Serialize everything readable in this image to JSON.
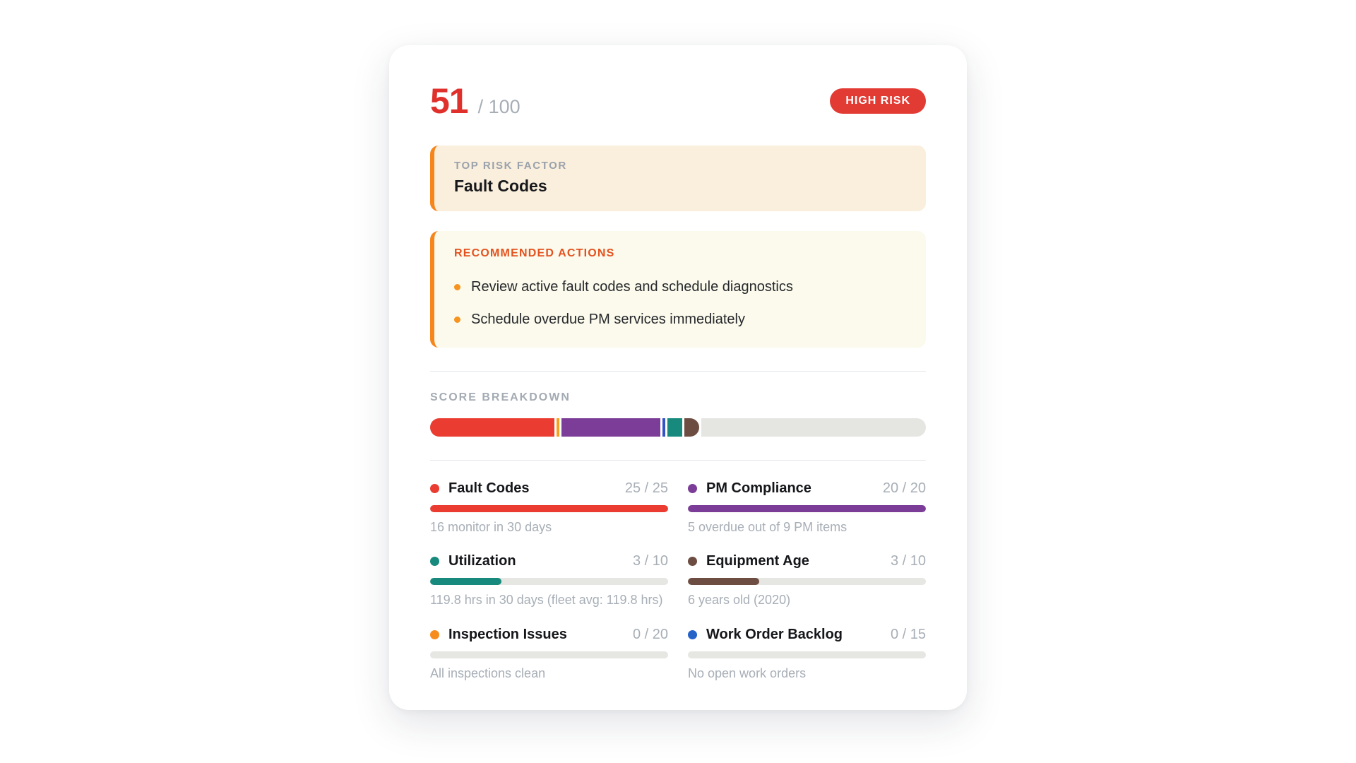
{
  "header": {
    "score": "51",
    "score_max": "/ 100",
    "badge": "HIGH RISK"
  },
  "top_risk": {
    "label": "TOP RISK FACTOR",
    "value": "Fault Codes"
  },
  "recommended": {
    "title": "RECOMMENDED ACTIONS",
    "items": [
      "Review active fault codes and schedule diagnostics",
      "Schedule overdue PM services immediately"
    ]
  },
  "breakdown": {
    "label": "SCORE BREAKDOWN",
    "total": 100,
    "track_color": "#e5e5e2",
    "segments": [
      {
        "name": "Fault Codes",
        "value": 25,
        "color": "#ea3c30"
      },
      {
        "name": "Inspection Issues",
        "value": 0,
        "color": "#f6a01f"
      },
      {
        "name": "PM Compliance",
        "value": 20,
        "color": "#7b3d97"
      },
      {
        "name": "Work Order Backlog",
        "value": 0,
        "color": "#3352c6"
      },
      {
        "name": "Utilization",
        "value": 3,
        "color": "#178a7d"
      },
      {
        "name": "Equipment Age",
        "value": 3,
        "color": "#6d4c41"
      }
    ]
  },
  "metrics": [
    {
      "name": "Fault Codes",
      "score": "25 / 25",
      "value": 25,
      "max": 25,
      "color": "#ea3c30",
      "caption": "16 monitor in 30 days"
    },
    {
      "name": "PM Compliance",
      "score": "20 / 20",
      "value": 20,
      "max": 20,
      "color": "#7b3d97",
      "caption": "5 overdue out of 9 PM items"
    },
    {
      "name": "Utilization",
      "score": "3 / 10",
      "value": 3,
      "max": 10,
      "color": "#178a7d",
      "caption": "119.8 hrs in 30 days (fleet avg: 119.8 hrs)"
    },
    {
      "name": "Equipment Age",
      "score": "3 / 10",
      "value": 3,
      "max": 10,
      "color": "#6d4c41",
      "caption": "6 years old (2020)"
    },
    {
      "name": "Inspection Issues",
      "score": "0 / 20",
      "value": 0,
      "max": 20,
      "color": "#f68c1e",
      "caption": "All inspections clean"
    },
    {
      "name": "Work Order Backlog",
      "score": "0 / 15",
      "value": 0,
      "max": 15,
      "color": "#2563c9",
      "caption": "No open work orders"
    }
  ],
  "colors": {
    "score_red": "#e0302c",
    "badge_bg": "#e23b34",
    "accent_orange_border": "#f6861c",
    "bullet_orange": "#f6941f",
    "actions_title": "#e4511e",
    "top_risk_bg": "#faeedc",
    "actions_bg": "#fbfaec",
    "muted_text": "#a7aeb6",
    "dark_text": "#17181b"
  }
}
